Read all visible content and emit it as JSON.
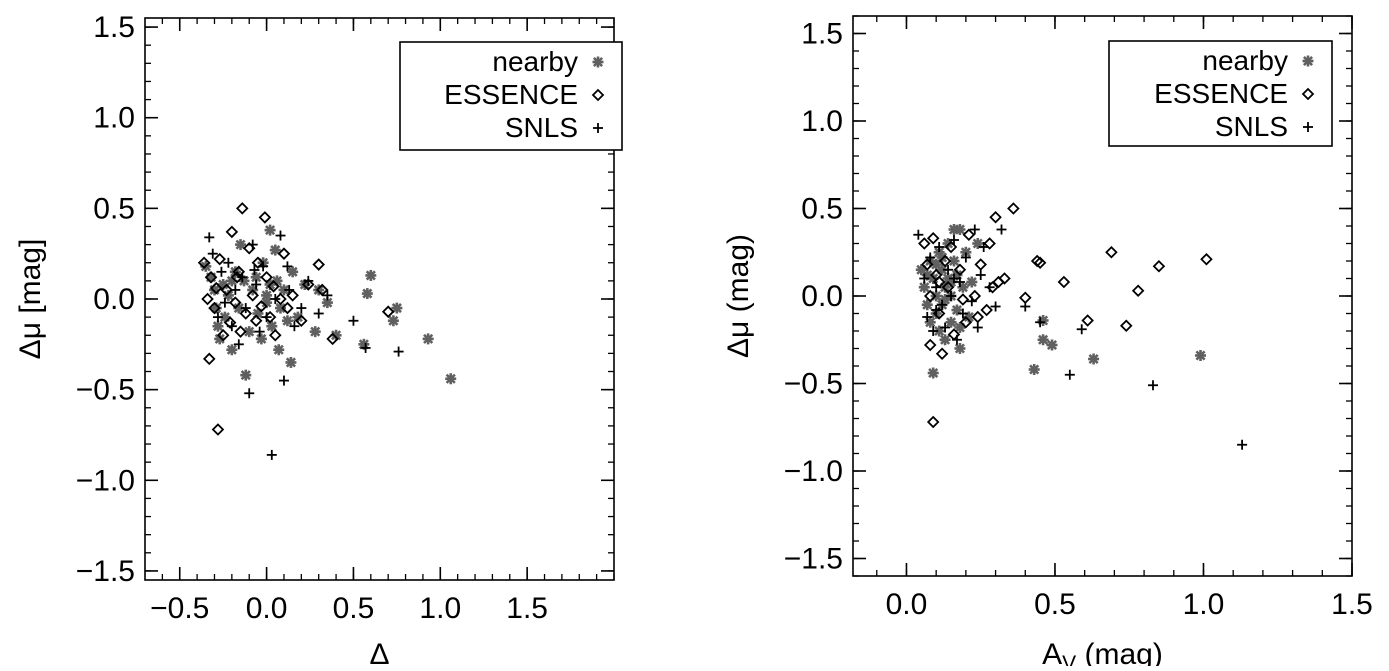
{
  "colors": {
    "nearby": "#606060",
    "essence": "#000000",
    "snls": "#000000",
    "axis": "#000000"
  },
  "legend": [
    {
      "key": "nearby",
      "label": "nearby",
      "marker": "asterisk"
    },
    {
      "key": "essence",
      "label": "ESSENCE",
      "marker": "diamond"
    },
    {
      "key": "snls",
      "label": "SNLS",
      "marker": "plus"
    }
  ],
  "chart_data": [
    {
      "type": "scatter",
      "title": "",
      "xlabel": "Δ",
      "ylabel": "Δμ  [mag]",
      "xlim": [
        -0.7,
        2.0
      ],
      "ylim": [
        -1.55,
        1.55
      ],
      "xticks": [
        -0.5,
        0.0,
        0.5,
        1.0,
        1.5
      ],
      "yticks": [
        -1.5,
        -1.0,
        -0.5,
        0.0,
        0.5,
        1.0,
        1.5
      ],
      "xtick_labels": [
        "−0.5",
        "0.0",
        "0.5",
        "1.0",
        "1.5"
      ],
      "ytick_labels": [
        "−1.5",
        "−1.0",
        "−0.5",
        "0.0",
        "0.5",
        "1.0",
        "1.5"
      ],
      "x_minor_step": 0.1,
      "y_minor_step": 0.1,
      "legend_position": "top-right",
      "series": [
        {
          "name": "nearby",
          "points": [
            [
              -0.35,
              0.18
            ],
            [
              -0.32,
              0.12
            ],
            [
              -0.3,
              0.05
            ],
            [
              -0.29,
              -0.05
            ],
            [
              -0.28,
              -0.15
            ],
            [
              -0.27,
              -0.22
            ],
            [
              -0.25,
              0.08
            ],
            [
              -0.24,
              -0.1
            ],
            [
              -0.22,
              0.02
            ],
            [
              -0.2,
              -0.28
            ],
            [
              -0.18,
              0.15
            ],
            [
              -0.16,
              -0.05
            ],
            [
              -0.15,
              0.3
            ],
            [
              -0.13,
              0.1
            ],
            [
              -0.12,
              -0.42
            ],
            [
              -0.1,
              -0.18
            ],
            [
              -0.08,
              0.05
            ],
            [
              -0.06,
              0.12
            ],
            [
              -0.05,
              -0.08
            ],
            [
              -0.03,
              -0.22
            ],
            [
              -0.02,
              0.2
            ],
            [
              0.0,
              0.02
            ],
            [
              0.02,
              0.38
            ],
            [
              0.03,
              -0.15
            ],
            [
              0.05,
              0.27
            ],
            [
              0.06,
              0.1
            ],
            [
              0.07,
              -0.28
            ],
            [
              0.08,
              -0.05
            ],
            [
              0.1,
              0.05
            ],
            [
              0.12,
              -0.12
            ],
            [
              0.14,
              -0.35
            ],
            [
              0.15,
              0.15
            ],
            [
              0.18,
              -0.1
            ],
            [
              0.22,
              0.08
            ],
            [
              0.28,
              -0.18
            ],
            [
              0.3,
              0.05
            ],
            [
              0.35,
              -0.02
            ],
            [
              0.4,
              -0.2
            ],
            [
              0.56,
              -0.25
            ],
            [
              0.58,
              0.03
            ],
            [
              0.6,
              0.13
            ],
            [
              0.75,
              -0.05
            ],
            [
              0.73,
              -0.12
            ],
            [
              0.93,
              -0.22
            ],
            [
              1.06,
              -0.44
            ],
            [
              -0.2,
              0.1
            ],
            [
              0.0,
              -0.02
            ],
            [
              0.02,
              0.08
            ]
          ]
        },
        {
          "name": "ESSENCE",
          "points": [
            [
              -0.36,
              0.2
            ],
            [
              -0.34,
              0.0
            ],
            [
              -0.33,
              -0.33
            ],
            [
              -0.32,
              0.12
            ],
            [
              -0.3,
              -0.05
            ],
            [
              -0.28,
              -0.72
            ],
            [
              -0.27,
              0.22
            ],
            [
              -0.25,
              -0.2
            ],
            [
              -0.23,
              0.05
            ],
            [
              -0.21,
              -0.13
            ],
            [
              -0.2,
              0.37
            ],
            [
              -0.18,
              -0.02
            ],
            [
              -0.16,
              0.15
            ],
            [
              -0.15,
              -0.18
            ],
            [
              -0.14,
              0.5
            ],
            [
              -0.12,
              -0.08
            ],
            [
              -0.1,
              0.28
            ],
            [
              -0.08,
              0.02
            ],
            [
              -0.06,
              -0.12
            ],
            [
              -0.05,
              0.2
            ],
            [
              -0.03,
              -0.04
            ],
            [
              -0.01,
              0.45
            ],
            [
              0.0,
              0.12
            ],
            [
              0.02,
              -0.1
            ],
            [
              0.04,
              0.07
            ],
            [
              0.05,
              -0.2
            ],
            [
              0.08,
              0.0
            ],
            [
              0.1,
              0.25
            ],
            [
              0.12,
              -0.05
            ],
            [
              0.15,
              0.02
            ],
            [
              0.2,
              -0.12
            ],
            [
              0.24,
              0.08
            ],
            [
              0.3,
              0.19
            ],
            [
              0.32,
              0.05
            ],
            [
              0.38,
              -0.22
            ],
            [
              0.7,
              -0.07
            ],
            [
              -0.29,
              0.06
            ],
            [
              -0.17,
              0.12
            ]
          ]
        },
        {
          "name": "SNLS",
          "points": [
            [
              -0.33,
              0.34
            ],
            [
              -0.31,
              0.25
            ],
            [
              -0.28,
              -0.1
            ],
            [
              -0.26,
              0.15
            ],
            [
              -0.24,
              -0.02
            ],
            [
              -0.22,
              0.2
            ],
            [
              -0.2,
              -0.15
            ],
            [
              -0.18,
              0.05
            ],
            [
              -0.16,
              -0.25
            ],
            [
              -0.14,
              0.12
            ],
            [
              -0.12,
              -0.05
            ],
            [
              -0.1,
              -0.52
            ],
            [
              -0.08,
              0.3
            ],
            [
              -0.06,
              0.08
            ],
            [
              -0.04,
              -0.18
            ],
            [
              -0.02,
              0.18
            ],
            [
              0.0,
              -0.1
            ],
            [
              0.03,
              -0.86
            ],
            [
              0.05,
              0.0
            ],
            [
              0.08,
              0.35
            ],
            [
              0.1,
              -0.45
            ],
            [
              0.12,
              0.18
            ],
            [
              0.16,
              -0.15
            ],
            [
              0.2,
              -0.05
            ],
            [
              0.24,
              0.1
            ],
            [
              0.3,
              -0.08
            ],
            [
              0.35,
              0.02
            ],
            [
              0.5,
              -0.12
            ],
            [
              0.57,
              -0.27
            ],
            [
              0.76,
              -0.29
            ],
            [
              -0.07,
              0.16
            ],
            [
              0.13,
              0.05
            ]
          ]
        }
      ]
    },
    {
      "type": "scatter",
      "title": "",
      "xlabel": "A_V (mag)",
      "ylabel": "Δμ (mag)",
      "xlim": [
        -0.18,
        1.5
      ],
      "ylim": [
        -1.6,
        1.6
      ],
      "xticks": [
        0.0,
        0.5,
        1.0,
        1.5
      ],
      "yticks": [
        -1.5,
        -1.0,
        -0.5,
        0.0,
        0.5,
        1.0,
        1.5
      ],
      "xtick_labels": [
        "0.0",
        "0.5",
        "1.0",
        "1.5"
      ],
      "ytick_labels": [
        "−1.5",
        "−1.0",
        "−0.5",
        "0.0",
        "0.5",
        "1.0",
        "1.5"
      ],
      "x_minor_step": 0.1,
      "y_minor_step": 0.1,
      "legend_position": "top-right",
      "series": [
        {
          "name": "nearby",
          "points": [
            [
              0.05,
              0.15
            ],
            [
              0.06,
              0.05
            ],
            [
              0.07,
              -0.05
            ],
            [
              0.08,
              0.2
            ],
            [
              0.08,
              -0.15
            ],
            [
              0.09,
              0.1
            ],
            [
              0.1,
              -0.1
            ],
            [
              0.1,
              0.0
            ],
            [
              0.11,
              0.25
            ],
            [
              0.11,
              -0.2
            ],
            [
              0.12,
              0.15
            ],
            [
              0.12,
              -0.05
            ],
            [
              0.13,
              0.05
            ],
            [
              0.13,
              -0.25
            ],
            [
              0.14,
              0.3
            ],
            [
              0.14,
              0.1
            ],
            [
              0.15,
              -0.15
            ],
            [
              0.15,
              0.0
            ],
            [
              0.16,
              0.38
            ],
            [
              0.16,
              0.2
            ],
            [
              0.17,
              -0.08
            ],
            [
              0.17,
              0.12
            ],
            [
              0.18,
              0.38
            ],
            [
              0.18,
              -0.3
            ],
            [
              0.19,
              0.05
            ],
            [
              0.2,
              0.25
            ],
            [
              0.21,
              -0.12
            ],
            [
              0.22,
              0.08
            ],
            [
              0.24,
              0.3
            ],
            [
              0.09,
              -0.44
            ],
            [
              0.43,
              -0.42
            ],
            [
              0.46,
              -0.14
            ],
            [
              0.46,
              -0.25
            ],
            [
              0.49,
              -0.28
            ],
            [
              0.63,
              -0.36
            ],
            [
              0.99,
              -0.34
            ],
            [
              0.1,
              0.18
            ],
            [
              0.13,
              -0.02
            ],
            [
              0.15,
              0.08
            ],
            [
              0.07,
              0.12
            ],
            [
              0.12,
              0.22
            ],
            [
              0.18,
              -0.18
            ]
          ]
        },
        {
          "name": "ESSENCE",
          "points": [
            [
              0.06,
              0.3
            ],
            [
              0.07,
              0.18
            ],
            [
              0.08,
              0.0
            ],
            [
              0.08,
              -0.28
            ],
            [
              0.09,
              0.33
            ],
            [
              0.1,
              0.12
            ],
            [
              0.11,
              -0.1
            ],
            [
              0.12,
              -0.33
            ],
            [
              0.13,
              0.2
            ],
            [
              0.14,
              0.05
            ],
            [
              0.16,
              -0.22
            ],
            [
              0.18,
              0.15
            ],
            [
              0.2,
              -0.15
            ],
            [
              0.21,
              0.35
            ],
            [
              0.23,
              0.0
            ],
            [
              0.25,
              0.18
            ],
            [
              0.27,
              -0.08
            ],
            [
              0.28,
              0.3
            ],
            [
              0.29,
              0.05
            ],
            [
              0.3,
              0.45
            ],
            [
              0.31,
              0.08
            ],
            [
              0.33,
              0.1
            ],
            [
              0.36,
              0.5
            ],
            [
              0.4,
              -0.01
            ],
            [
              0.44,
              0.2
            ],
            [
              0.45,
              0.19
            ],
            [
              0.53,
              0.08
            ],
            [
              0.61,
              -0.14
            ],
            [
              0.69,
              0.25
            ],
            [
              0.74,
              -0.17
            ],
            [
              0.78,
              0.03
            ],
            [
              0.85,
              0.17
            ],
            [
              1.01,
              0.21
            ],
            [
              0.09,
              -0.72
            ],
            [
              0.15,
              0.28
            ],
            [
              0.19,
              -0.02
            ],
            [
              0.24,
              -0.12
            ],
            [
              0.11,
              0.08
            ]
          ]
        },
        {
          "name": "SNLS",
          "points": [
            [
              0.04,
              0.35
            ],
            [
              0.06,
              0.1
            ],
            [
              0.07,
              -0.12
            ],
            [
              0.08,
              0.22
            ],
            [
              0.09,
              -0.2
            ],
            [
              0.1,
              0.05
            ],
            [
              0.11,
              0.28
            ],
            [
              0.12,
              -0.05
            ],
            [
              0.13,
              -0.18
            ],
            [
              0.14,
              0.15
            ],
            [
              0.15,
              0.0
            ],
            [
              0.16,
              0.32
            ],
            [
              0.17,
              -0.25
            ],
            [
              0.18,
              0.08
            ],
            [
              0.19,
              -0.1
            ],
            [
              0.2,
              0.22
            ],
            [
              0.22,
              -0.03
            ],
            [
              0.24,
              -0.18
            ],
            [
              0.25,
              0.12
            ],
            [
              0.26,
              0.28
            ],
            [
              0.28,
              0.05
            ],
            [
              0.3,
              -0.06
            ],
            [
              0.32,
              0.38
            ],
            [
              0.4,
              -0.06
            ],
            [
              0.45,
              -0.15
            ],
            [
              0.55,
              -0.45
            ],
            [
              0.59,
              -0.19
            ],
            [
              0.83,
              -0.51
            ],
            [
              1.13,
              -0.85
            ],
            [
              0.23,
              0.38
            ],
            [
              0.1,
              -0.08
            ],
            [
              0.16,
              0.1
            ]
          ]
        }
      ]
    }
  ]
}
